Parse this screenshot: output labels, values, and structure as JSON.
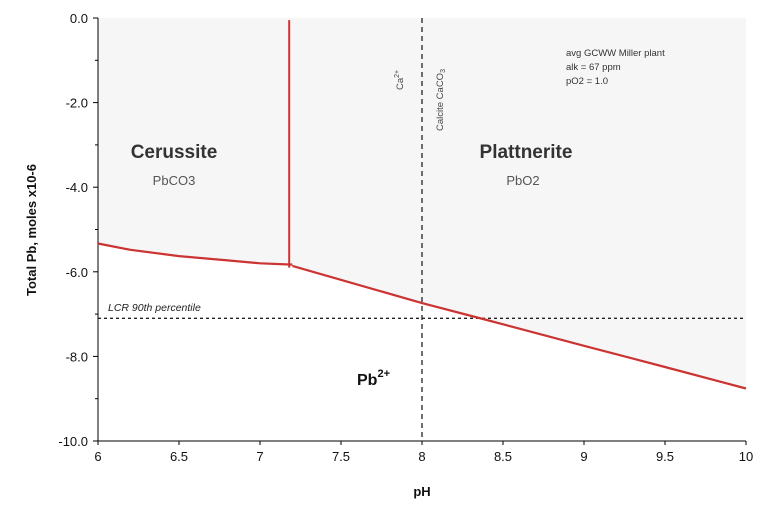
{
  "chart_data": {
    "type": "line",
    "title": "",
    "xlabel": "pH",
    "ylabel": "Total Pb, moles x10-6",
    "xlim": [
      6,
      10
    ],
    "ylim": [
      -10,
      0
    ],
    "x_ticks": [
      "6",
      "6.5",
      "7",
      "7.5",
      "8",
      "8.5",
      "9",
      "9.5",
      "10"
    ],
    "y_ticks": [
      "0.0",
      "-2.0",
      "-4.0",
      "-6.0",
      "-8.0",
      "-10.0"
    ],
    "grid": false,
    "series": [
      {
        "color": "#cc3333",
        "points": [
          [
            6.0,
            -5.33
          ],
          [
            6.2,
            -5.48
          ],
          [
            6.5,
            -5.63
          ],
          [
            6.8,
            -5.73
          ],
          [
            7.0,
            -5.8
          ],
          [
            7.2,
            -5.83
          ]
        ]
      },
      {
        "color": "#cc3333",
        "points": [
          [
            7.2,
            -5.86
          ],
          [
            8.0,
            -6.74
          ],
          [
            8.4,
            -7.14
          ],
          [
            9.0,
            -7.75
          ],
          [
            9.5,
            -8.25
          ],
          [
            10.0,
            -8.76
          ]
        ]
      },
      {
        "color": "#cc3333",
        "points": [
          [
            7.18,
            -0.05
          ],
          [
            7.18,
            -5.9
          ]
        ]
      }
    ],
    "reference_lines": {
      "vertical": {
        "x": 8.0
      },
      "horizontal": {
        "y": -7.1
      }
    },
    "annotations": {
      "cerussite": {
        "name": "Cerussite",
        "formula": "PbCO3"
      },
      "plattnerite": {
        "name": "Plattnerite",
        "formula": "PbO2"
      },
      "pb_ion": {
        "text": "Pb",
        "sup": "2+"
      },
      "ca_ion": {
        "text": "Ca",
        "sup": "2+"
      },
      "calcite": {
        "text": "Calcite  CaCO",
        "sub": "3"
      },
      "conditions": [
        "avg GCWW Miller plant",
        "alk = 67 ppm",
        "pO2 = 1.0"
      ],
      "lcr_label": "LCR 90th percentile"
    },
    "colors": {
      "region_fill": "#f6f6f6",
      "boundary": "#cc3333"
    }
  }
}
